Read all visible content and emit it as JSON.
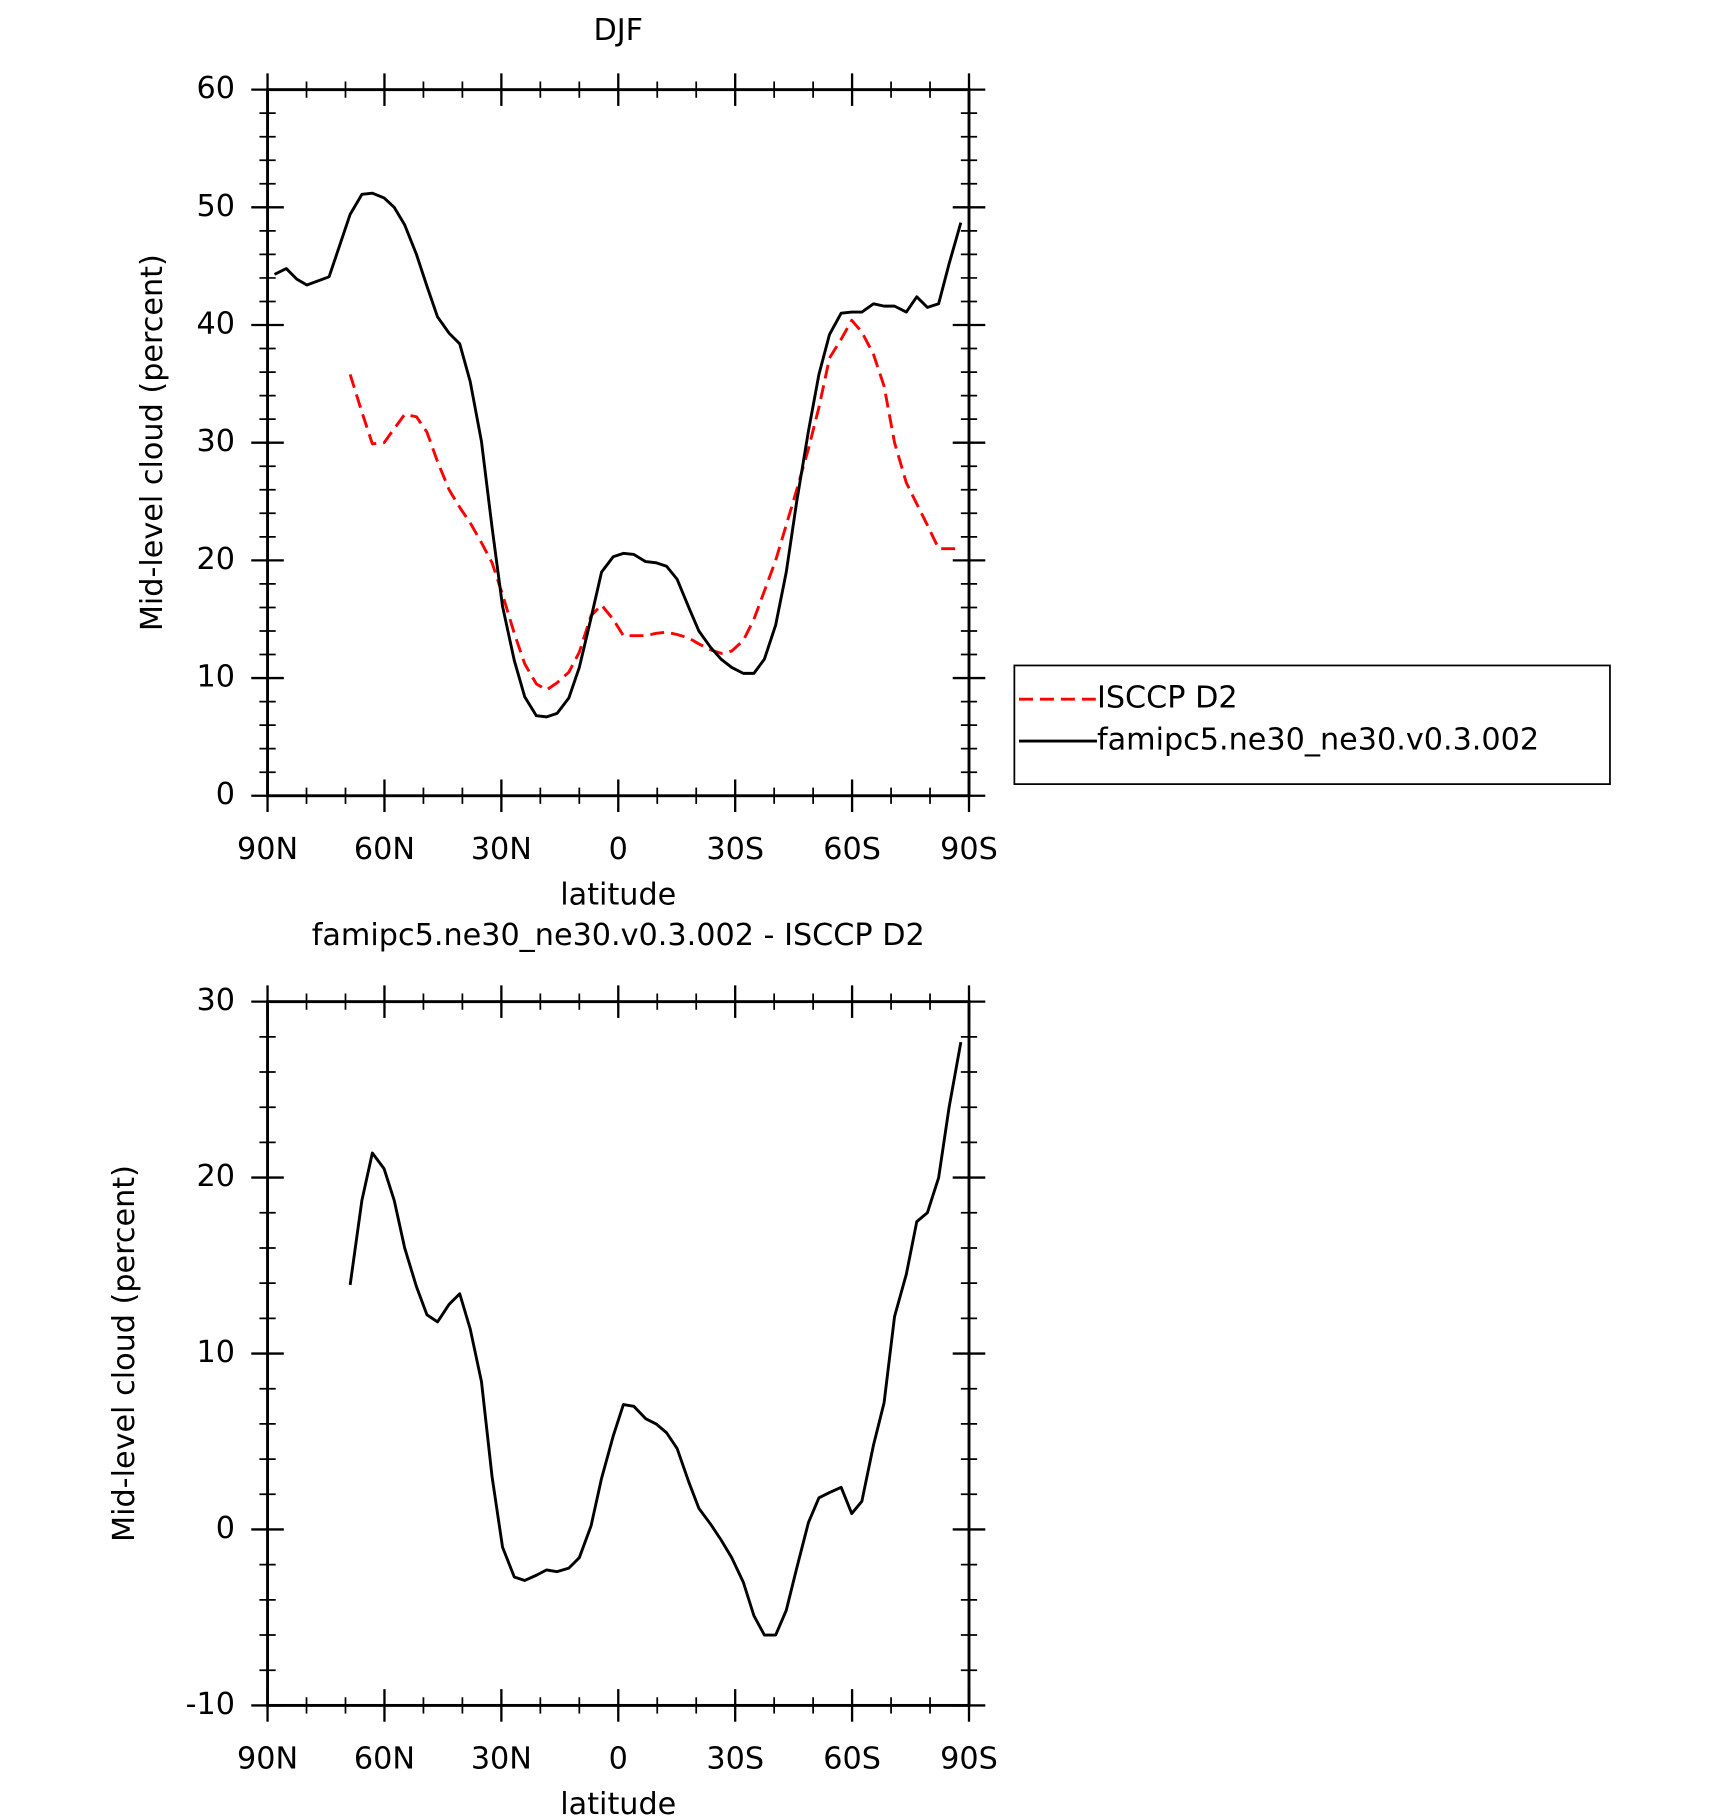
{
  "chart_data": [
    {
      "type": "line",
      "title": "DJF",
      "xlabel": "latitude",
      "ylabel": "Mid-level cloud (percent)",
      "xlim": [
        90,
        -90
      ],
      "xticks": [
        {
          "value": 90,
          "label": "90N"
        },
        {
          "value": 60,
          "label": "60N"
        },
        {
          "value": 30,
          "label": "30N"
        },
        0,
        {
          "value": -30,
          "label": "30S"
        },
        {
          "value": -60,
          "label": "60S"
        },
        {
          "value": -90,
          "label": "90S"
        }
      ],
      "ylim": [
        0,
        60
      ],
      "yticks": [
        0,
        10,
        20,
        30,
        40,
        50,
        60
      ],
      "legend": "right",
      "series": [
        {
          "name": "ISCCP D2",
          "color": "#ff0000",
          "dash": true,
          "x": [
            68.8,
            65.8,
            63.1,
            60.1,
            57.5,
            54.8,
            51.8,
            49.1,
            46.4,
            43.4,
            40.7,
            38.0,
            35.1,
            32.4,
            29.7,
            26.7,
            24.0,
            21.0,
            18.4,
            15.7,
            12.7,
            10.0,
            7.0,
            4.3,
            1.3,
            -1.3,
            -4.0,
            -7.0,
            -9.7,
            -12.4,
            -15.1,
            -18.1,
            -20.7,
            -23.7,
            -26.4,
            -29.1,
            -32.1,
            -34.8,
            -37.5,
            -40.4,
            -43.1,
            -45.8,
            -48.8,
            -51.5,
            -54.2,
            -57.2,
            -59.9,
            -62.5,
            -65.5,
            -68.2,
            -70.9,
            -73.9,
            -76.6,
            -79.3,
            -82.2,
            -84.9,
            -87.9
          ],
          "values": [
            35.8,
            32.6,
            29.9,
            30.0,
            31.2,
            32.4,
            32.2,
            30.9,
            28.4,
            26.0,
            24.5,
            23.2,
            21.5,
            19.8,
            17.1,
            13.8,
            11.2,
            9.5,
            9.0,
            9.6,
            10.5,
            12.2,
            15.3,
            16.2,
            15.0,
            13.6,
            13.6,
            13.6,
            13.8,
            13.9,
            13.7,
            13.4,
            12.9,
            12.4,
            12.1,
            12.3,
            13.2,
            15.0,
            17.4,
            20.0,
            23.0,
            26.0,
            29.5,
            33.0,
            37.2,
            38.8,
            40.4,
            39.4,
            37.5,
            34.8,
            30.0,
            26.6,
            24.8,
            23.0,
            21.0,
            21.0,
            21.0
          ]
        },
        {
          "name": "famipc5.ne30_ne30.v0.3.002",
          "color": "#000000",
          "dash": false,
          "x": [
            88.2,
            85.2,
            82.5,
            79.9,
            74.2,
            68.8,
            65.8,
            63.1,
            60.1,
            57.5,
            54.8,
            51.8,
            49.1,
            46.4,
            43.4,
            40.7,
            38.0,
            35.1,
            32.4,
            29.7,
            26.7,
            24.0,
            21.0,
            18.4,
            15.7,
            12.7,
            10.0,
            7.0,
            4.3,
            1.3,
            -1.3,
            -4.0,
            -7.0,
            -9.7,
            -12.4,
            -15.1,
            -18.1,
            -20.7,
            -23.7,
            -26.4,
            -29.1,
            -32.1,
            -34.8,
            -37.5,
            -40.4,
            -43.1,
            -45.8,
            -48.8,
            -51.5,
            -54.2,
            -57.2,
            -59.9,
            -62.5,
            -65.5,
            -68.2,
            -70.9,
            -73.9,
            -76.6,
            -79.3,
            -82.2,
            -84.9,
            -87.9
          ],
          "values": [
            44.3,
            44.8,
            43.9,
            43.4,
            44.1,
            49.4,
            51.1,
            51.2,
            50.8,
            50.0,
            48.5,
            46.0,
            43.3,
            40.7,
            39.3,
            38.4,
            35.2,
            30.1,
            22.8,
            16.1,
            11.5,
            8.4,
            6.8,
            6.7,
            7.0,
            8.3,
            10.9,
            15.1,
            19.0,
            20.3,
            20.6,
            20.5,
            19.9,
            19.8,
            19.5,
            18.4,
            16.0,
            14.0,
            12.6,
            11.6,
            10.9,
            10.4,
            10.4,
            11.6,
            14.5,
            19.0,
            25.0,
            31.0,
            35.8,
            39.2,
            41.0,
            41.1,
            41.1,
            41.8,
            41.6,
            41.6,
            41.1,
            42.4,
            41.5,
            41.8,
            45.2,
            48.7
          ]
        }
      ]
    },
    {
      "type": "line",
      "title": "famipc5.ne30_ne30.v0.3.002 - ISCCP D2",
      "xlabel": "latitude",
      "ylabel": "Mid-level cloud (percent)",
      "xlim": [
        90,
        -90
      ],
      "xticks": [
        {
          "value": 90,
          "label": "90N"
        },
        {
          "value": 60,
          "label": "60N"
        },
        {
          "value": 30,
          "label": "30N"
        },
        0,
        {
          "value": -30,
          "label": "30S"
        },
        {
          "value": -60,
          "label": "60S"
        },
        {
          "value": -90,
          "label": "90S"
        }
      ],
      "ylim": [
        -10,
        30
      ],
      "yticks": [
        -10,
        0,
        10,
        20,
        30
      ],
      "series": [
        {
          "color": "#000000",
          "dash": false,
          "x": [
            68.8,
            65.8,
            63.1,
            60.1,
            57.5,
            54.8,
            51.8,
            49.1,
            46.4,
            43.4,
            40.7,
            38.0,
            35.1,
            32.4,
            29.7,
            26.7,
            24.0,
            21.0,
            18.4,
            15.7,
            12.7,
            10.0,
            7.0,
            4.3,
            1.3,
            -1.3,
            -4.0,
            -7.0,
            -9.7,
            -12.4,
            -15.1,
            -18.1,
            -20.7,
            -23.7,
            -26.4,
            -29.1,
            -32.1,
            -34.8,
            -37.5,
            -40.4,
            -43.1,
            -45.8,
            -48.8,
            -51.5,
            -54.2,
            -57.2,
            -59.9,
            -62.5,
            -65.5,
            -68.2,
            -70.9,
            -73.9,
            -76.6,
            -79.3,
            -82.2,
            -84.9,
            -87.9
          ],
          "values": [
            13.9,
            18.7,
            21.4,
            20.5,
            18.7,
            16.0,
            13.8,
            12.2,
            11.8,
            12.8,
            13.4,
            11.4,
            8.4,
            3.0,
            -1.0,
            -2.7,
            -2.9,
            -2.6,
            -2.3,
            -2.4,
            -2.2,
            -1.6,
            0.2,
            2.9,
            5.3,
            7.1,
            7.0,
            6.3,
            6.0,
            5.5,
            4.6,
            2.7,
            1.2,
            0.3,
            -0.6,
            -1.6,
            -3.0,
            -4.9,
            -6.0,
            -6.0,
            -4.6,
            -2.2,
            0.4,
            1.8,
            2.1,
            2.4,
            0.9,
            1.6,
            4.8,
            7.2,
            12.1,
            14.5,
            17.5,
            18.0,
            20.0,
            24.0,
            27.7
          ]
        }
      ]
    }
  ]
}
